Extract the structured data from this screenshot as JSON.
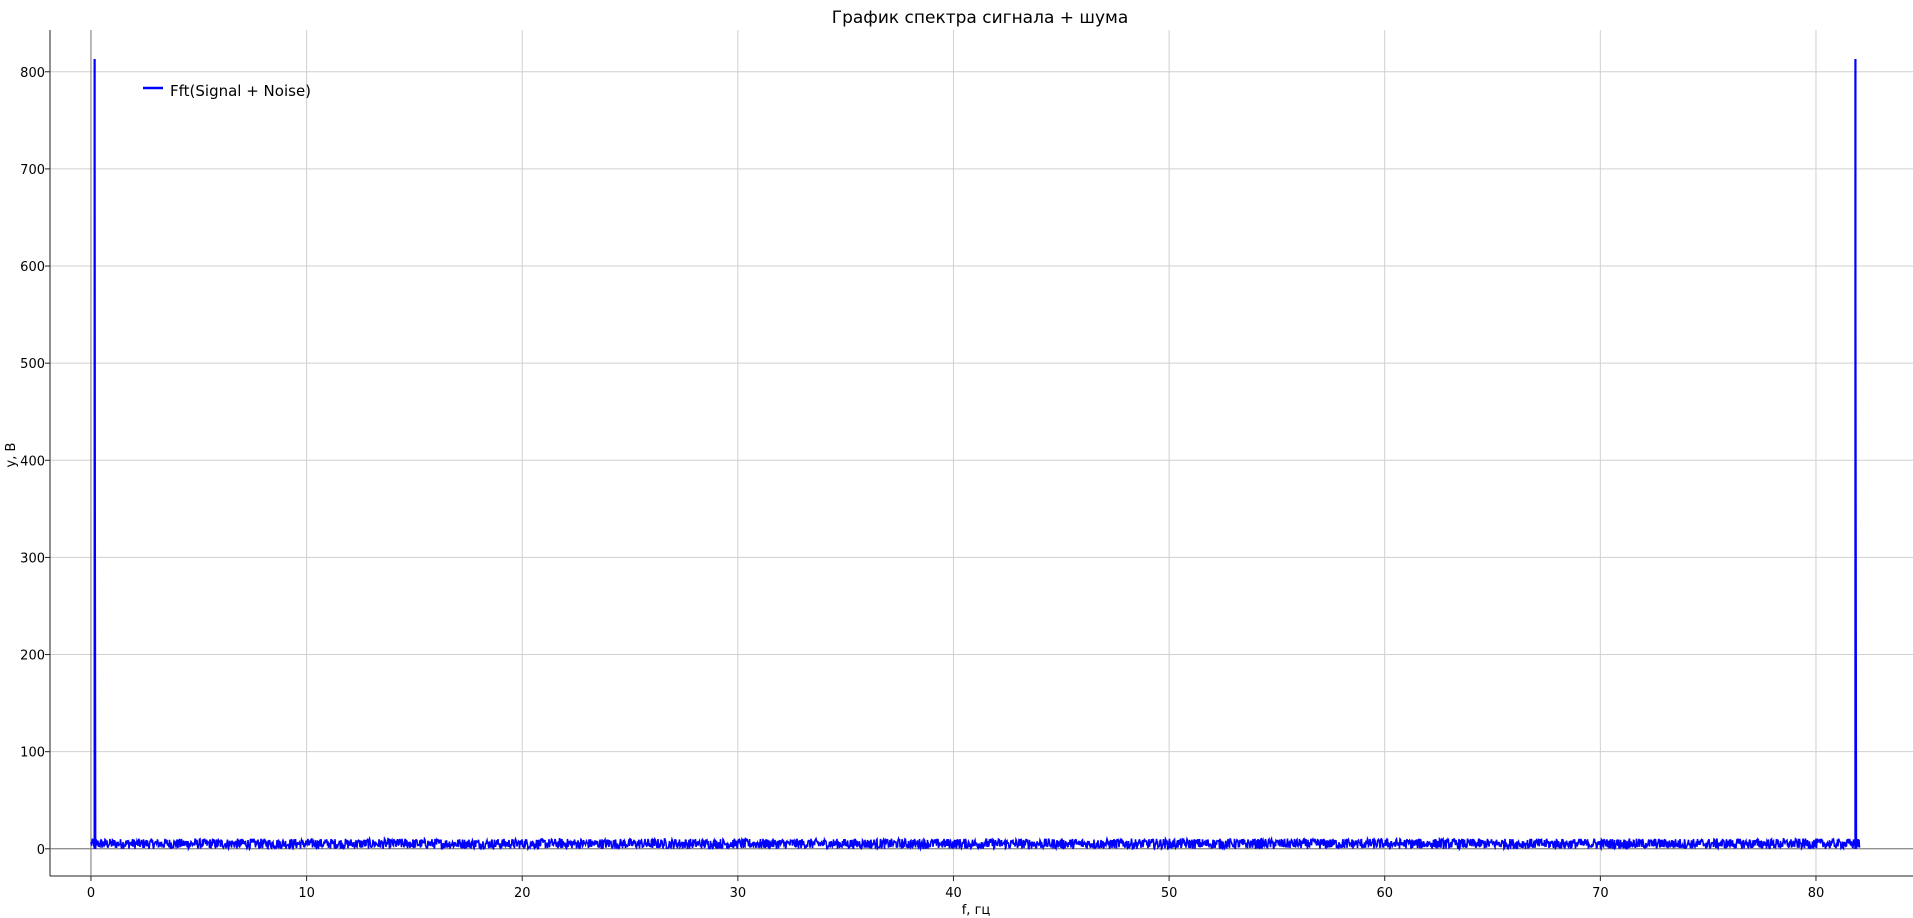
{
  "chart_data": {
    "type": "line",
    "title": "График спектра сигнала + шума",
    "xlabel": "f, гц",
    "ylabel": "y, В",
    "xlim": [
      -1.9,
      84.5
    ],
    "ylim": [
      -28,
      843
    ],
    "x_ticks": [
      0,
      10,
      20,
      30,
      40,
      50,
      60,
      70,
      80
    ],
    "y_ticks": [
      0,
      100,
      200,
      300,
      400,
      500,
      600,
      700,
      800
    ],
    "grid": true,
    "legend_position": "top-left",
    "series": [
      {
        "name": "Fft(Signal + Noise)",
        "color": "#0000ff",
        "x_start": 0,
        "x_end": 82,
        "noise_floor": [
          0,
          15
        ],
        "peaks": [
          {
            "x": 0.17,
            "y": 813
          },
          {
            "x": 81.83,
            "y": 813
          }
        ]
      }
    ]
  }
}
